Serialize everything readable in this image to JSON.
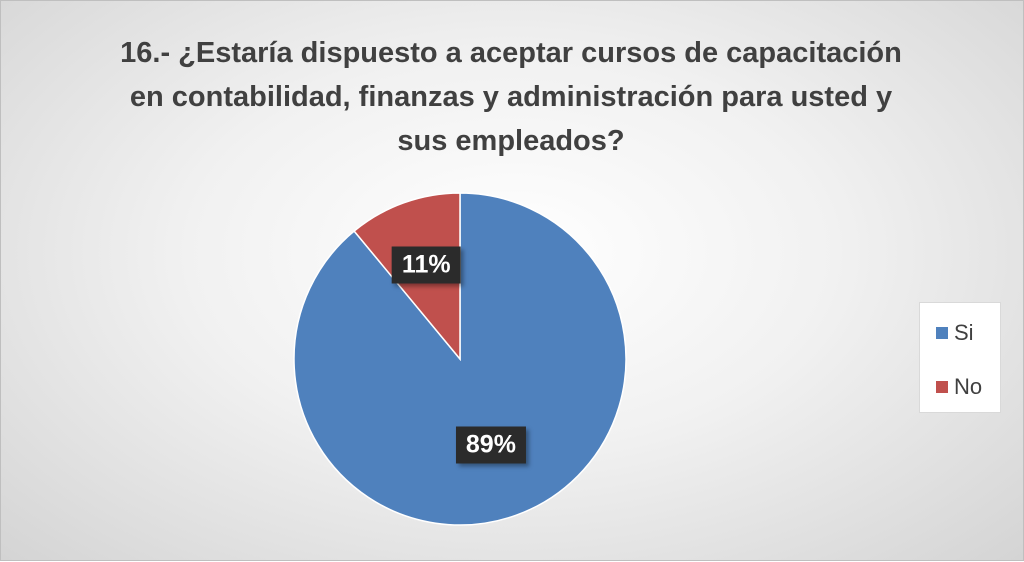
{
  "chart_data": {
    "type": "pie",
    "title_lines": [
      "16.- ¿Estaría dispuesto a aceptar cursos de capacitación",
      "en contabilidad, finanzas y administración para usted y",
      "sus empleados?"
    ],
    "slices": [
      {
        "name": "Si",
        "value": 89,
        "label": "89%",
        "color": "#4f81bd"
      },
      {
        "name": "No",
        "value": 11,
        "label": "11%",
        "color": "#c0504d"
      }
    ],
    "legend_position": "right"
  }
}
